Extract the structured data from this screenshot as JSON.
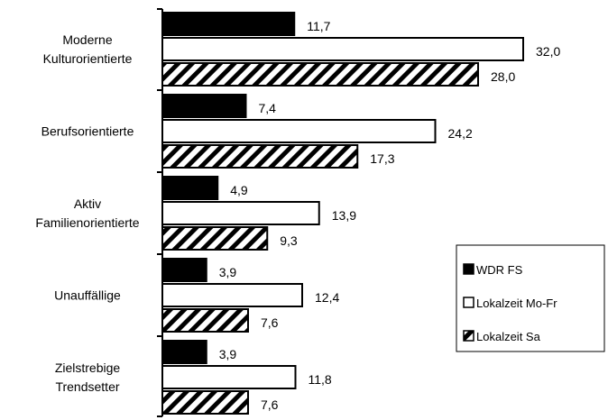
{
  "chart_data": {
    "type": "bar",
    "orientation": "horizontal",
    "categories": [
      [
        "Moderne",
        "Kulturorientierte"
      ],
      [
        "Berufsorientierte"
      ],
      [
        "Aktiv",
        "Familienorientierte"
      ],
      [
        "Unauffällige"
      ],
      [
        "Zielstrebige",
        "Trendsetter"
      ]
    ],
    "series": [
      {
        "name": "WDR FS",
        "values": [
          11.7,
          7.4,
          4.9,
          3.9,
          3.9
        ],
        "labels": [
          "11,7",
          "7,4",
          "4,9",
          "3,9",
          "3,9"
        ],
        "fill": "solid",
        "color": "#000000"
      },
      {
        "name": "Lokalzeit Mo-Fr",
        "values": [
          32.0,
          24.2,
          13.9,
          12.4,
          11.8
        ],
        "labels": [
          "32,0",
          "24,2",
          "13,9",
          "12,4",
          "11,8"
        ],
        "fill": "white",
        "color": "#ffffff"
      },
      {
        "name": "Lokalzeit Sa",
        "values": [
          28.0,
          17.3,
          9.3,
          7.6,
          7.6
        ],
        "labels": [
          "28,0",
          "17,3",
          "9,3",
          "7,6",
          "7,6"
        ],
        "fill": "hatched",
        "color": "#000000"
      }
    ],
    "xlim": [
      0,
      32
    ],
    "grid": false,
    "legend_position": "right"
  }
}
